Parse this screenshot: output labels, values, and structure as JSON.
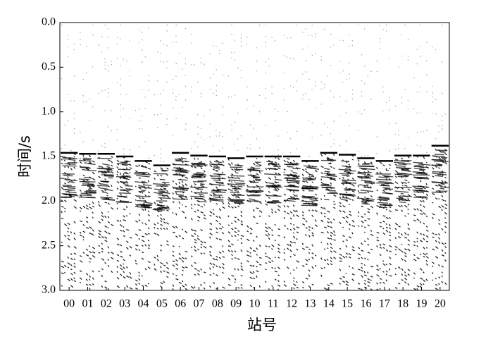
{
  "chart_data": {
    "type": "seismic",
    "xlabel": "站号",
    "ylabel": "时间/s",
    "categories": [
      "00",
      "01",
      "02",
      "03",
      "04",
      "05",
      "06",
      "07",
      "08",
      "09",
      "10",
      "11",
      "12",
      "13",
      "14",
      "15",
      "16",
      "17",
      "18",
      "19",
      "20"
    ],
    "values": [
      1.46,
      1.47,
      1.47,
      1.5,
      1.55,
      1.6,
      1.46,
      1.49,
      1.5,
      1.52,
      1.5,
      1.5,
      1.5,
      1.55,
      1.46,
      1.48,
      1.52,
      1.55,
      1.49,
      1.49,
      1.38
    ],
    "color": "#000000",
    "ylim": [
      0,
      3
    ],
    "y_inverted": true,
    "yticks": [
      {
        "value": 0,
        "label": "0.0"
      },
      {
        "value": 0.5,
        "label": "0.5"
      },
      {
        "value": 1,
        "label": "1.0"
      },
      {
        "value": 1.5,
        "label": "1.5"
      },
      {
        "value": 2,
        "label": "2.0"
      },
      {
        "value": 2.5,
        "label": "2.5"
      },
      {
        "value": 3,
        "label": "3.0"
      }
    ]
  }
}
